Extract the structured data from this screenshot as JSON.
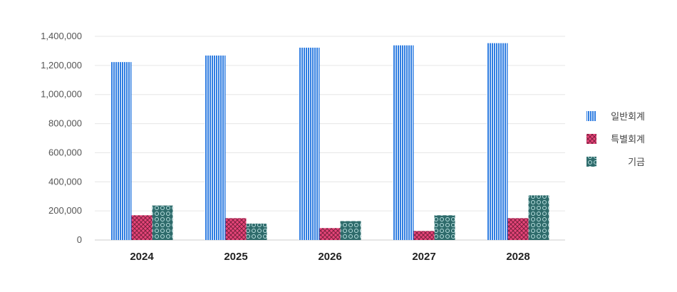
{
  "chart_data": {
    "type": "bar",
    "title": "",
    "xlabel": "",
    "ylabel": "",
    "categories": [
      "2024",
      "2025",
      "2026",
      "2027",
      "2028"
    ],
    "ylim": [
      0,
      1400000
    ],
    "yticks": [
      0,
      200000,
      400000,
      600000,
      800000,
      1000000,
      1200000,
      1400000
    ],
    "ytick_labels": [
      "0",
      "200,000",
      "400,000",
      "600,000",
      "800,000",
      "1,000,000",
      "1,200,000",
      "1,400,000"
    ],
    "grid": true,
    "legend_position": "right",
    "series": [
      {
        "name": "일반회계",
        "color": "#2f7de1",
        "pattern": "vertical-lines",
        "values": [
          1223000,
          1268000,
          1322000,
          1338000,
          1353000
        ]
      },
      {
        "name": "특별회계",
        "color": "#e8457a",
        "pattern": "cross-hatch",
        "values": [
          170000,
          150000,
          82000,
          62000,
          150000
        ]
      },
      {
        "name": "기금",
        "color": "#2e6b6b",
        "pattern": "circles",
        "values": [
          237000,
          113000,
          130000,
          170000,
          307000
        ]
      }
    ]
  }
}
